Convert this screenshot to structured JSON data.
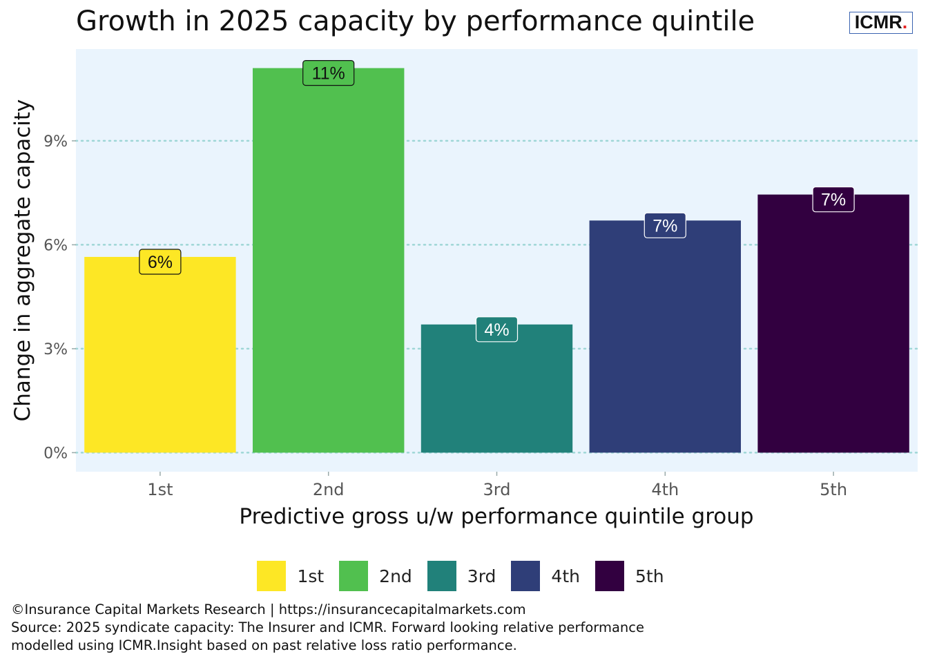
{
  "title": "Growth in 2025 capacity by performance quintile",
  "logo": {
    "text": "ICMR",
    "dot": "."
  },
  "footer": {
    "copyright": "©Insurance Capital Markets Research | https://insurancecapitalmarkets.com",
    "source_line1": "Source: 2025 syndicate capacity: The Insurer and ICMR. Forward looking relative performance",
    "source_line2": "modelled using ICMR.Insight based on past relative loss ratio performance."
  },
  "chart_data": {
    "type": "bar",
    "title": "Growth in 2025 capacity by performance quintile",
    "xlabel": "Predictive gross u/w performance quintile group",
    "ylabel": "Change in aggregate capacity",
    "categories": [
      "1st",
      "2nd",
      "3rd",
      "4th",
      "5th"
    ],
    "values": [
      5.65,
      11.1,
      3.7,
      6.7,
      7.45
    ],
    "data_labels": [
      "6%",
      "11%",
      "4%",
      "7%",
      "7%"
    ],
    "colors": [
      "#fde725",
      "#51c04f",
      "#21817a",
      "#2f3e78",
      "#320040"
    ],
    "label_text_colors": [
      "#111111",
      "#111111",
      "#ffffff",
      "#ffffff",
      "#ffffff"
    ],
    "y_ticks": [
      0,
      3,
      6,
      9
    ],
    "y_tick_labels": [
      "0%",
      "3%",
      "6%",
      "9%"
    ],
    "ylim": [
      -0.55,
      11.65
    ],
    "grid": "horizontal dotted",
    "panel_background": "#eaf4fd",
    "grid_color": "#9ed6d6",
    "legend_position": "bottom",
    "legend": [
      "1st",
      "2nd",
      "3rd",
      "4th",
      "5th"
    ]
  }
}
